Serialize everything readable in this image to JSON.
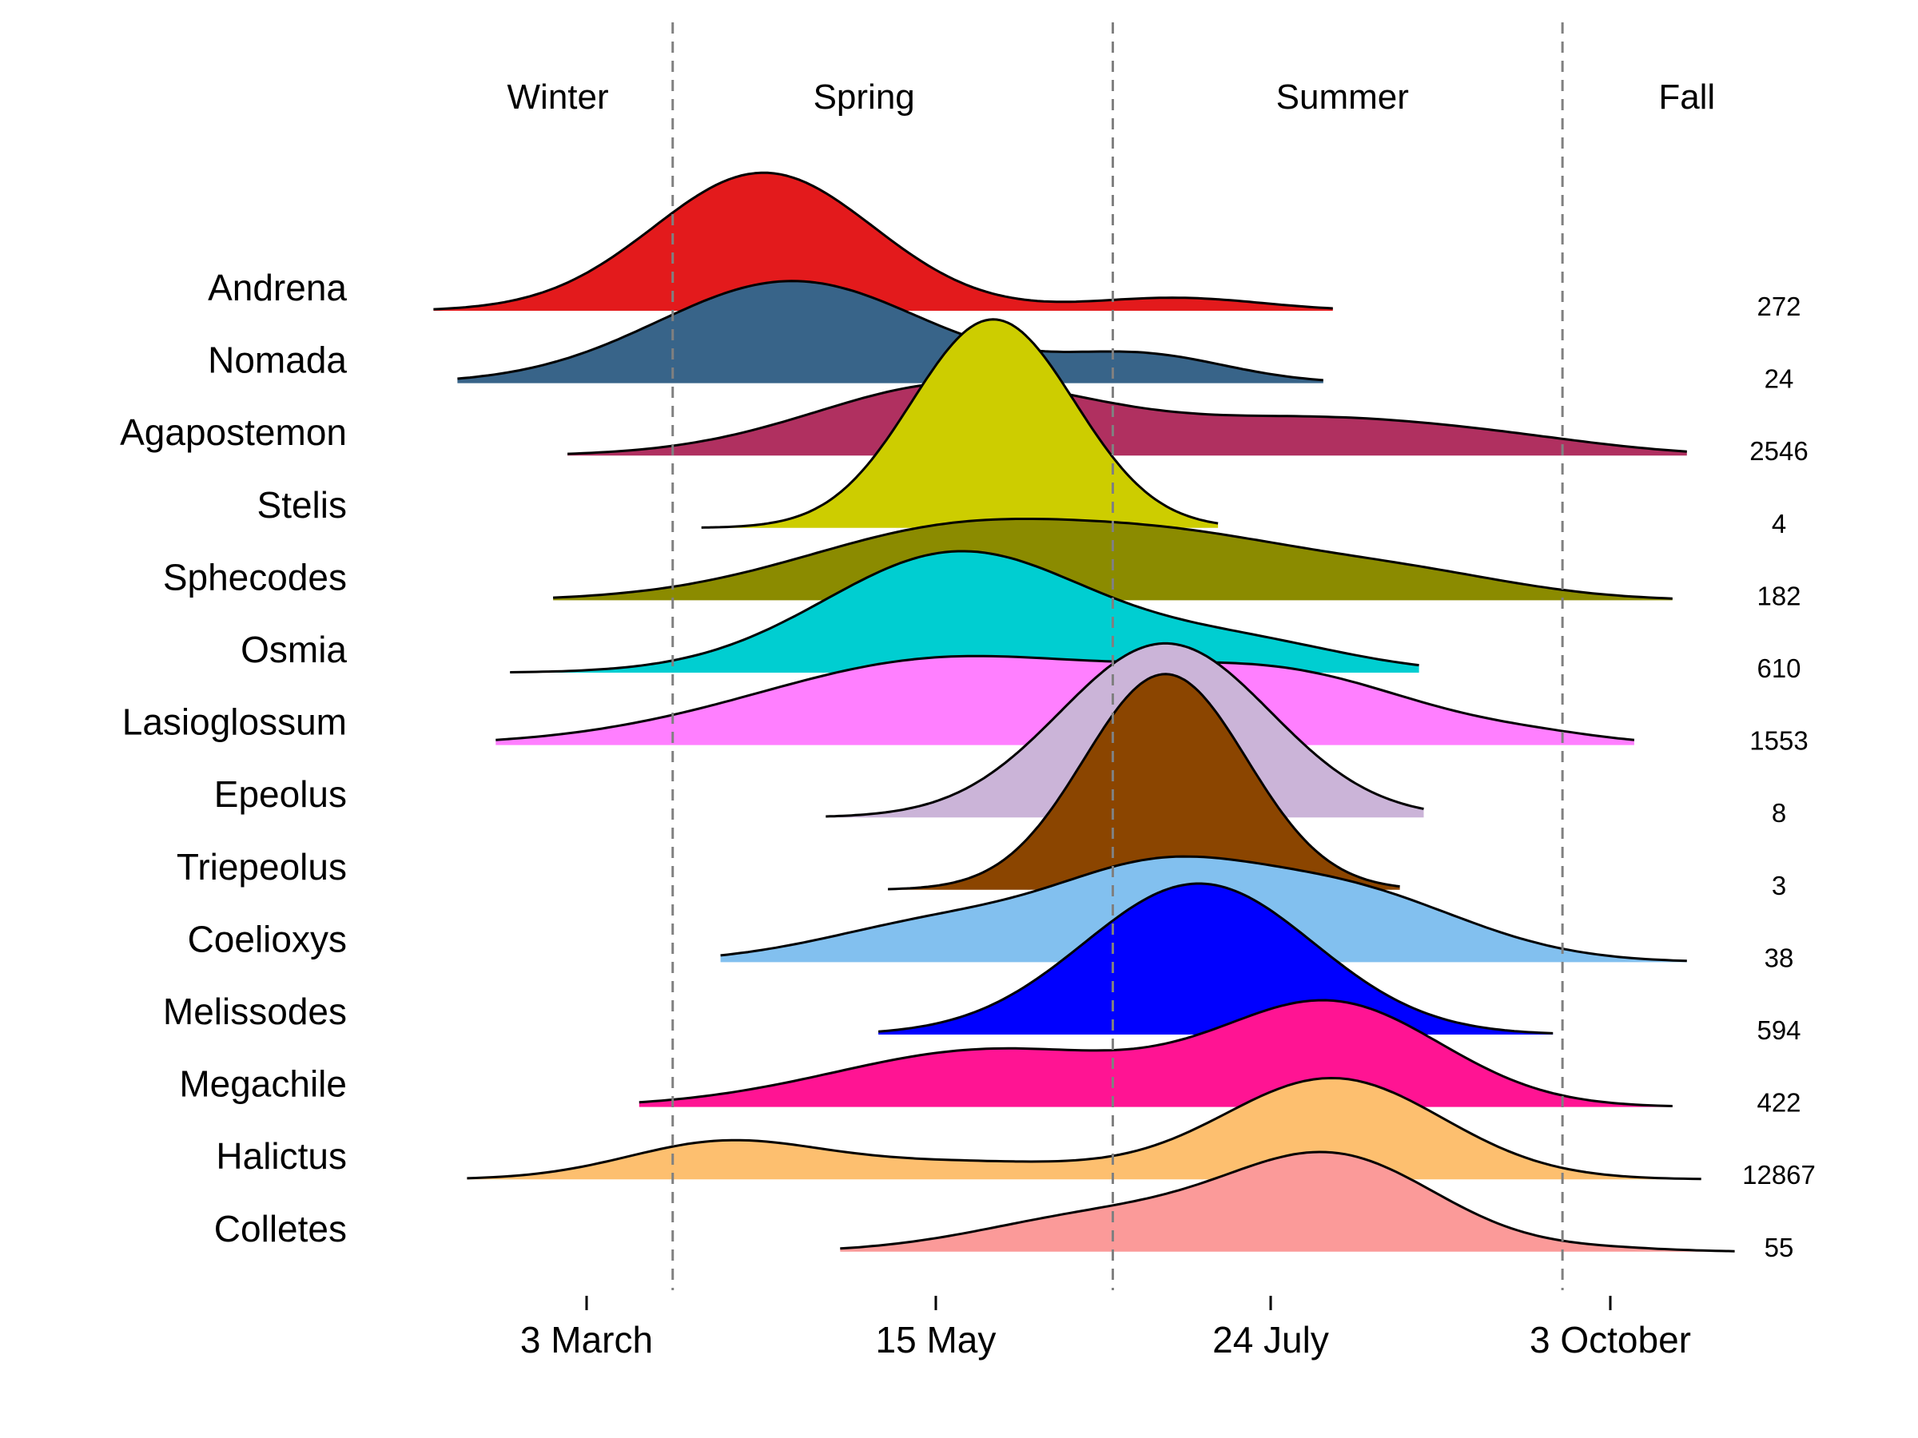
{
  "chart_data": {
    "type": "ridgeline",
    "title": "",
    "xlabel": "",
    "ylabel": "",
    "x_unit": "day of year",
    "x_range": [
      30,
      320
    ],
    "x_ticks": [
      {
        "label": "3 March",
        "value": 62
      },
      {
        "label": "15 May",
        "value": 135
      },
      {
        "label": "24 July",
        "value": 205
      },
      {
        "label": "3 October",
        "value": 276
      }
    ],
    "season_boundaries": [
      80,
      172,
      266
    ],
    "seasons": [
      {
        "label": "Winter",
        "center": 56
      },
      {
        "label": "Spring",
        "center": 120
      },
      {
        "label": "Summer",
        "center": 220
      },
      {
        "label": "Fall",
        "center": 292
      }
    ],
    "series": [
      {
        "name": "Andrena",
        "count": "272",
        "color": "#e31a1c",
        "range": [
          30,
          218
        ],
        "peaks": [
          {
            "mu": 99,
            "sd": 23,
            "h": 1.92
          },
          {
            "mu": 185,
            "sd": 18,
            "h": 0.18
          }
        ]
      },
      {
        "name": "Nomada",
        "count": "24",
        "color": "#386489",
        "range": [
          35,
          216
        ],
        "peaks": [
          {
            "mu": 105,
            "sd": 28,
            "h": 1.42
          },
          {
            "mu": 178,
            "sd": 18,
            "h": 0.38
          }
        ]
      },
      {
        "name": "Agapostemon",
        "count": "2546",
        "color": "#b03060",
        "range": [
          58,
          292
        ],
        "peaks": [
          {
            "mu": 140,
            "sd": 30,
            "h": 1.0
          },
          {
            "mu": 216,
            "sd": 30,
            "h": 0.48
          },
          {
            "mu": 258,
            "sd": 22,
            "h": 0.12
          }
        ]
      },
      {
        "name": "Stelis",
        "count": "4",
        "color": "#cdcd00",
        "range": [
          86,
          194
        ],
        "peaks": [
          {
            "mu": 147,
            "sd": 17,
            "h": 2.9
          }
        ]
      },
      {
        "name": "Sphecodes",
        "count": "182",
        "color": "#8b8b00",
        "range": [
          55,
          289
        ],
        "peaks": [
          {
            "mu": 143,
            "sd": 34,
            "h": 1.05
          },
          {
            "mu": 190,
            "sd": 23,
            "h": 0.45
          },
          {
            "mu": 230,
            "sd": 25,
            "h": 0.4
          }
        ]
      },
      {
        "name": "Osmia",
        "count": "610",
        "color": "#00ced1",
        "range": [
          46,
          236
        ],
        "peaks": [
          {
            "mu": 140,
            "sd": 28,
            "h": 1.68
          },
          {
            "mu": 200,
            "sd": 22,
            "h": 0.38
          }
        ]
      },
      {
        "name": "Lasioglossum",
        "count": "1553",
        "color": "#ff7fff",
        "range": [
          43,
          281
        ],
        "peaks": [
          {
            "mu": 138,
            "sd": 40,
            "h": 1.2
          },
          {
            "mu": 210,
            "sd": 28,
            "h": 0.82
          },
          {
            "mu": 262,
            "sd": 15,
            "h": 0.08
          }
        ]
      },
      {
        "name": "Epeolus",
        "count": "8",
        "color": "#cbb4d8",
        "range": [
          112,
          237
        ],
        "peaks": [
          {
            "mu": 183,
            "sd": 22,
            "h": 2.42
          }
        ]
      },
      {
        "name": "Triepeolus",
        "count": "3",
        "color": "#8b4500",
        "range": [
          125,
          232
        ],
        "peaks": [
          {
            "mu": 183,
            "sd": 17,
            "h": 3.0
          }
        ]
      },
      {
        "name": "Coelioxys",
        "count": "38",
        "color": "#82c0ef",
        "range": [
          90,
          292
        ],
        "peaks": [
          {
            "mu": 140,
            "sd": 26,
            "h": 0.6
          },
          {
            "mu": 180,
            "sd": 20,
            "h": 0.9
          },
          {
            "mu": 218,
            "sd": 26,
            "h": 1.03
          }
        ]
      },
      {
        "name": "Melissodes",
        "count": "594",
        "color": "#0000ff",
        "range": [
          123,
          264
        ],
        "peaks": [
          {
            "mu": 190,
            "sd": 24,
            "h": 2.1
          }
        ]
      },
      {
        "name": "Megachile",
        "count": "422",
        "color": "#ff1493",
        "range": [
          73,
          289
        ],
        "peaks": [
          {
            "mu": 147,
            "sd": 33,
            "h": 0.8
          },
          {
            "mu": 218,
            "sd": 23,
            "h": 1.4
          }
        ]
      },
      {
        "name": "Halictus",
        "count": "12867",
        "color": "#fdbf6f",
        "range": [
          37,
          295
        ],
        "peaks": [
          {
            "mu": 90,
            "sd": 20,
            "h": 0.48
          },
          {
            "mu": 140,
            "sd": 30,
            "h": 0.24
          },
          {
            "mu": 218,
            "sd": 23,
            "h": 1.4
          }
        ]
      },
      {
        "name": "Colletes",
        "count": "55",
        "color": "#fb9a99",
        "range": [
          115,
          302
        ],
        "peaks": [
          {
            "mu": 170,
            "sd": 25,
            "h": 0.5
          },
          {
            "mu": 218,
            "sd": 22,
            "h": 1.3
          },
          {
            "mu": 275,
            "sd": 14,
            "h": 0.04
          }
        ]
      }
    ]
  }
}
